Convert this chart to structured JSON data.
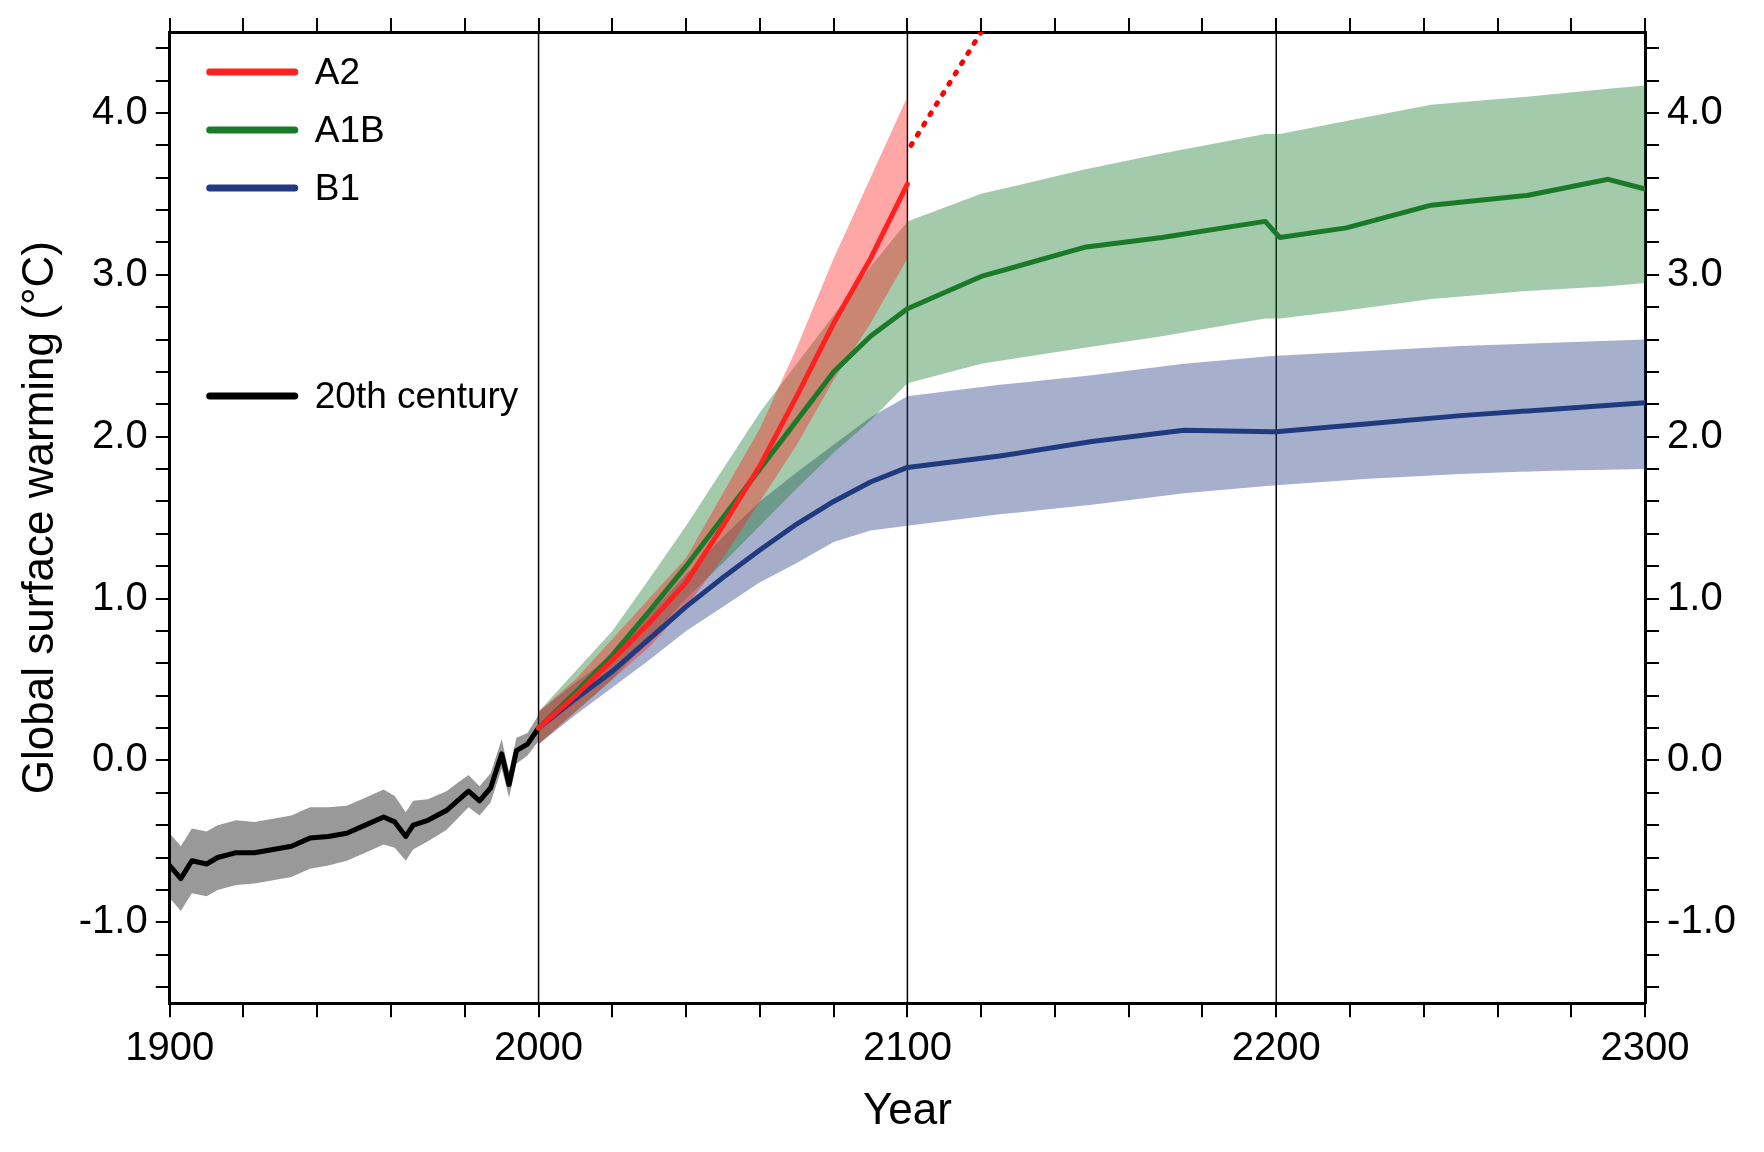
{
  "chart_data": {
    "type": "line",
    "xlabel": "Year",
    "ylabel": "Global surface warming (°C)",
    "xlim": [
      1900,
      2300
    ],
    "ylim": [
      -1.5,
      4.5
    ],
    "y2lim": [
      -1.5,
      4.5
    ],
    "xticks": [
      1900,
      {
        "value": 1920,
        "label": null
      },
      {
        "value": 1940,
        "label": null
      },
      {
        "value": 1960,
        "label": null
      },
      {
        "value": 1980,
        "label": null
      },
      2000,
      {
        "value": 2020,
        "label": null
      },
      {
        "value": 2040,
        "label": null
      },
      {
        "value": 2060,
        "label": null
      },
      {
        "value": 2080,
        "label": null
      },
      2100,
      {
        "value": 2120,
        "label": null
      },
      {
        "value": 2140,
        "label": null
      },
      {
        "value": 2160,
        "label": null
      },
      {
        "value": 2180,
        "label": null
      },
      2200,
      {
        "value": 2220,
        "label": null
      },
      {
        "value": 2240,
        "label": null
      },
      {
        "value": 2260,
        "label": null
      },
      {
        "value": 2280,
        "label": null
      },
      2300
    ],
    "yticks": [
      {
        "value": -1.4,
        "label": null
      },
      {
        "value": -1.2,
        "label": null
      },
      {
        "value": -1,
        "label": "-1.0"
      },
      {
        "value": -0.8,
        "label": null
      },
      {
        "value": -0.6,
        "label": null
      },
      {
        "value": -0.4,
        "label": null
      },
      {
        "value": -0.2,
        "label": null
      },
      {
        "value": 0,
        "label": "0.0"
      },
      {
        "value": 0.2,
        "label": null
      },
      {
        "value": 0.4,
        "label": null
      },
      {
        "value": 0.6,
        "label": null
      },
      {
        "value": 0.8,
        "label": null
      },
      {
        "value": 1,
        "label": "1.0"
      },
      {
        "value": 1.2,
        "label": null
      },
      {
        "value": 1.4,
        "label": null
      },
      {
        "value": 1.6,
        "label": null
      },
      {
        "value": 1.8,
        "label": null
      },
      {
        "value": 2,
        "label": "2.0"
      },
      {
        "value": 2.2,
        "label": null
      },
      {
        "value": 2.4,
        "label": null
      },
      {
        "value": 2.6,
        "label": null
      },
      {
        "value": 2.8,
        "label": null
      },
      {
        "value": 3,
        "label": "3.0"
      },
      {
        "value": 3.2,
        "label": null
      },
      {
        "value": 3.4,
        "label": null
      },
      {
        "value": 3.6,
        "label": null
      },
      {
        "value": 3.8,
        "label": null
      },
      {
        "value": 4,
        "label": "4.0"
      },
      {
        "value": 4.2,
        "label": null
      },
      {
        "value": 4.4,
        "label": null
      }
    ],
    "y2ticks": [
      {
        "value": -1.4,
        "label": null
      },
      {
        "value": -1.2,
        "label": null
      },
      {
        "value": -1,
        "label": "-1.0"
      },
      {
        "value": -0.8,
        "label": null
      },
      {
        "value": -0.6,
        "label": null
      },
      {
        "value": -0.4,
        "label": null
      },
      {
        "value": -0.2,
        "label": null
      },
      {
        "value": 0,
        "label": "0.0"
      },
      {
        "value": 0.2,
        "label": null
      },
      {
        "value": 0.4,
        "label": null
      },
      {
        "value": 0.6,
        "label": null
      },
      {
        "value": 0.8,
        "label": null
      },
      {
        "value": 1,
        "label": "1.0"
      },
      {
        "value": 1.2,
        "label": null
      },
      {
        "value": 1.4,
        "label": null
      },
      {
        "value": 1.6,
        "label": null
      },
      {
        "value": 1.8,
        "label": null
      },
      {
        "value": 2,
        "label": "2.0"
      },
      {
        "value": 2.2,
        "label": null
      },
      {
        "value": 2.4,
        "label": null
      },
      {
        "value": 2.6,
        "label": null
      },
      {
        "value": 2.8,
        "label": null
      },
      {
        "value": 3,
        "label": "3.0"
      },
      {
        "value": 3.2,
        "label": null
      },
      {
        "value": 3.4,
        "label": null
      },
      {
        "value": 3.6,
        "label": null
      },
      {
        "value": 3.8,
        "label": null
      },
      {
        "value": 4,
        "label": "4.0"
      },
      {
        "value": 4.2,
        "label": null
      },
      {
        "value": 4.4,
        "label": null
      }
    ],
    "grid": false,
    "legend": "top left",
    "line_style": "solid",
    "marker": "none",
    "ref_lines": [
      {
        "axis": "x",
        "value": 2000,
        "label": null,
        "color": "#000000"
      },
      {
        "axis": "x",
        "value": 2100,
        "label": null,
        "color": "#000000"
      },
      {
        "axis": "x",
        "value": 2200,
        "label": null,
        "color": "#000000"
      }
    ],
    "series": [
      {
        "name": "A2",
        "color": "#ff2020",
        "x": [
          2000,
          2010,
          2020,
          2030,
          2040,
          2050,
          2060,
          2070,
          2080,
          2090,
          2100
        ],
        "values": [
          0.2,
          0.4,
          0.62,
          0.85,
          1.1,
          1.45,
          1.82,
          2.25,
          2.7,
          3.1,
          3.56
        ],
        "lower": [
          0.1,
          0.3,
          0.5,
          0.7,
          0.95,
          1.25,
          1.6,
          1.95,
          2.35,
          2.7,
          3.1
        ],
        "upper": [
          0.3,
          0.5,
          0.75,
          1.0,
          1.25,
          1.65,
          2.05,
          2.55,
          3.1,
          3.6,
          4.1
        ]
      },
      {
        "name": "A1B",
        "color": "#1a7a2a",
        "x": [
          2000,
          2010,
          2020,
          2030,
          2040,
          2050,
          2060,
          2070,
          2080,
          2090,
          2100,
          2120,
          2148,
          2169,
          2197,
          2201,
          2219,
          2242,
          2268,
          2290,
          2300
        ],
        "values": [
          0.2,
          0.42,
          0.65,
          0.92,
          1.2,
          1.5,
          1.8,
          2.1,
          2.4,
          2.62,
          2.79,
          2.99,
          3.17,
          3.23,
          3.33,
          3.23,
          3.29,
          3.43,
          3.49,
          3.59,
          3.53
        ],
        "lower": [
          0.1,
          0.3,
          0.5,
          0.75,
          1.0,
          1.22,
          1.45,
          1.68,
          1.9,
          2.1,
          2.33,
          2.45,
          2.55,
          2.62,
          2.73,
          2.73,
          2.78,
          2.85,
          2.9,
          2.93,
          2.95
        ],
        "upper": [
          0.3,
          0.55,
          0.8,
          1.12,
          1.45,
          1.8,
          2.15,
          2.45,
          2.75,
          3.05,
          3.33,
          3.5,
          3.65,
          3.75,
          3.87,
          3.87,
          3.95,
          4.05,
          4.1,
          4.15,
          4.17
        ]
      },
      {
        "name": "B1",
        "color": "#203a80",
        "x": [
          2000,
          2010,
          2020,
          2030,
          2040,
          2050,
          2060,
          2070,
          2080,
          2090,
          2100,
          2125,
          2150,
          2175,
          2200,
          2225,
          2250,
          2275,
          2300
        ],
        "values": [
          0.2,
          0.38,
          0.55,
          0.75,
          0.95,
          1.13,
          1.3,
          1.46,
          1.6,
          1.72,
          1.81,
          1.88,
          1.97,
          2.04,
          2.03,
          2.08,
          2.13,
          2.17,
          2.21
        ],
        "lower": [
          0.1,
          0.28,
          0.45,
          0.62,
          0.8,
          0.95,
          1.1,
          1.22,
          1.35,
          1.42,
          1.45,
          1.52,
          1.58,
          1.65,
          1.7,
          1.74,
          1.77,
          1.79,
          1.8
        ],
        "upper": [
          0.3,
          0.48,
          0.65,
          0.9,
          1.15,
          1.38,
          1.6,
          1.78,
          1.95,
          2.12,
          2.25,
          2.32,
          2.38,
          2.45,
          2.5,
          2.53,
          2.56,
          2.58,
          2.6
        ]
      },
      {
        "name": "20th century",
        "color": "#000000",
        "x": [
          1900,
          1903,
          1906,
          1910,
          1913,
          1918,
          1923,
          1928,
          1933,
          1938,
          1943,
          1948,
          1953,
          1958,
          1961,
          1964,
          1966,
          1970,
          1975,
          1978,
          1981,
          1984,
          1987,
          1990,
          1992,
          1994,
          1997,
          2000
        ],
        "values": [
          -0.65,
          -0.73,
          -0.62,
          -0.64,
          -0.6,
          -0.57,
          -0.57,
          -0.55,
          -0.53,
          -0.48,
          -0.47,
          -0.45,
          -0.4,
          -0.35,
          -0.38,
          -0.47,
          -0.4,
          -0.37,
          -0.31,
          -0.25,
          -0.19,
          -0.25,
          -0.17,
          0.04,
          -0.15,
          0.06,
          0.1,
          0.2
        ],
        "lower": [
          -0.85,
          -0.93,
          -0.82,
          -0.84,
          -0.8,
          -0.77,
          -0.76,
          -0.74,
          -0.72,
          -0.67,
          -0.65,
          -0.62,
          -0.57,
          -0.52,
          -0.54,
          -0.62,
          -0.55,
          -0.5,
          -0.43,
          -0.36,
          -0.29,
          -0.34,
          -0.26,
          -0.05,
          -0.23,
          -0.02,
          0.03,
          0.12
        ],
        "upper": [
          -0.45,
          -0.53,
          -0.42,
          -0.44,
          -0.4,
          -0.37,
          -0.38,
          -0.36,
          -0.34,
          -0.29,
          -0.29,
          -0.28,
          -0.23,
          -0.18,
          -0.22,
          -0.32,
          -0.25,
          -0.24,
          -0.19,
          -0.14,
          -0.09,
          -0.16,
          -0.08,
          0.13,
          -0.07,
          0.14,
          0.17,
          0.28
        ]
      },
      {
        "type": "line",
        "color": "#ff0000",
        "line_style": "dotted",
        "x": [
          2101,
          2120
        ],
        "values": [
          3.8,
          4.5
        ]
      }
    ]
  }
}
